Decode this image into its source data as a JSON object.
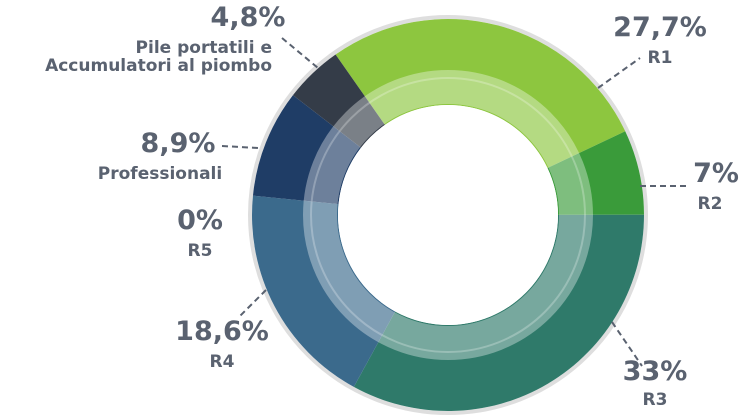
{
  "chart_data": {
    "type": "donut",
    "categories": [
      "R1",
      "R2",
      "R3",
      "R4",
      "R5",
      "Professionali",
      "Pile portatili e Accumulatori al piombo"
    ],
    "values": [
      27.7,
      7,
      33,
      18.6,
      0,
      8.9,
      4.8
    ],
    "value_labels": [
      "27,7%",
      "7%",
      "33%",
      "18,6%",
      "0%",
      "8,9%",
      "4,8%"
    ],
    "colors": [
      "#8dc63f",
      "#3a9b3a",
      "#2f7a6a",
      "#3b6a8c",
      "#4a6fa0",
      "#1f3d66",
      "#343c48"
    ]
  }
}
